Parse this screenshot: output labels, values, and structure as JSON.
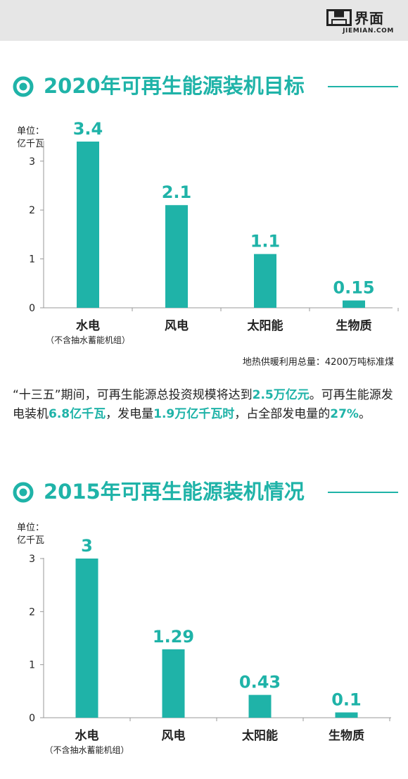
{
  "brand": {
    "name_cn": "界面",
    "name_en": "JIEMIAN.COM"
  },
  "colors": {
    "accent": "#1fb3a8",
    "bar": "#1fb3a8",
    "axis": "#999999",
    "header_bg": "#e6e6e6"
  },
  "section1": {
    "title": "2020年可再生能源装机目标",
    "unit": "单位：\n亿千瓦",
    "footnote": "地热供暖利用总量：4200万吨标准煤"
  },
  "paragraph": {
    "p1": "“十三五”期间，可再生能源总投资规模将达到",
    "h1": "2.5万亿元",
    "p2": "。可再生能源发电装机",
    "h2": "6.8亿千瓦",
    "p3": "，发电量",
    "h3": "1.9万亿千瓦时",
    "p4": "，占全部发电量的",
    "h4": "27%",
    "p5": "。"
  },
  "section2": {
    "title": "2015年可再生能源装机情况",
    "unit": "单位：\n亿千瓦"
  },
  "chart_data": [
    {
      "type": "bar",
      "title": "2020年可再生能源装机目标",
      "ylabel": "单位：亿千瓦",
      "categories": [
        "水电",
        "风电",
        "太阳能",
        "生物质"
      ],
      "category_notes": [
        "（不含抽水蓄能机组）",
        "",
        "",
        ""
      ],
      "values": [
        3.4,
        2.1,
        1.1,
        0.15
      ],
      "value_labels": [
        "3.4",
        "2.1",
        "1.1",
        "0.15"
      ],
      "yticks": [
        "0",
        "1",
        "2",
        "3"
      ],
      "ylim": [
        0,
        3.4
      ],
      "grid": false,
      "legend": "none"
    },
    {
      "type": "bar",
      "title": "2015年可再生能源装机情况",
      "ylabel": "单位：亿千瓦",
      "categories": [
        "水电",
        "风电",
        "太阳能",
        "生物质"
      ],
      "category_notes": [
        "（不含抽水蓄能机组）",
        "",
        "",
        ""
      ],
      "values": [
        3,
        1.29,
        0.43,
        0.1
      ],
      "value_labels": [
        "3",
        "1.29",
        "0.43",
        "0.1"
      ],
      "yticks": [
        "0",
        "1",
        "2",
        "3"
      ],
      "ylim": [
        0,
        3
      ],
      "grid": false,
      "legend": "none"
    }
  ]
}
